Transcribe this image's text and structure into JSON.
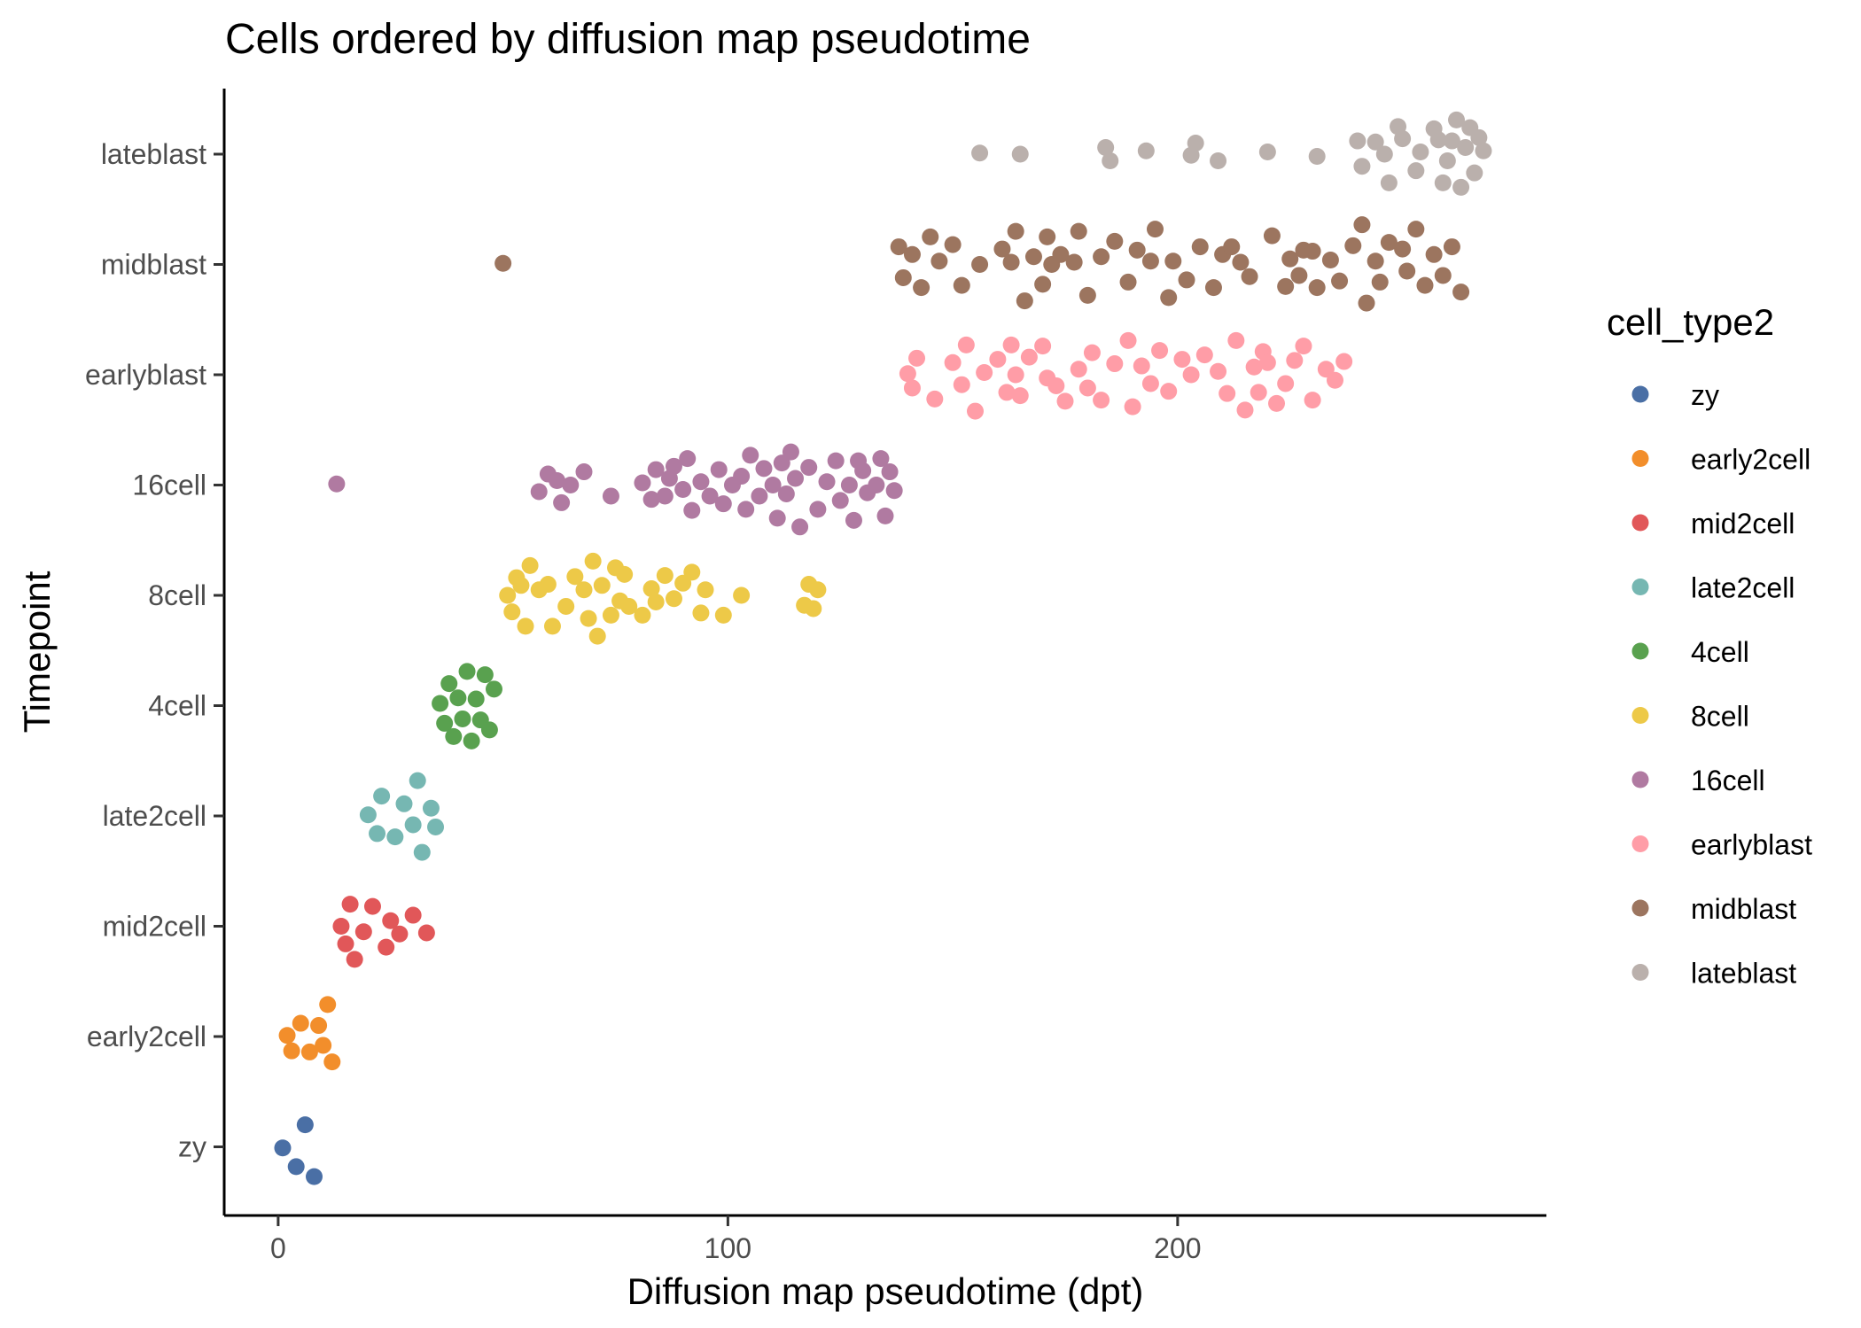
{
  "chart_data": {
    "type": "scatter",
    "title": "Cells ordered by diffusion map pseudotime",
    "xlabel": "Diffusion map pseudotime (dpt)",
    "ylabel": "Timepoint",
    "xlim": [
      -12,
      282
    ],
    "x_ticks": [
      0,
      100,
      200
    ],
    "categories": [
      "zy",
      "early2cell",
      "mid2cell",
      "late2cell",
      "4cell",
      "8cell",
      "16cell",
      "earlyblast",
      "midblast",
      "lateblast"
    ],
    "grid": false,
    "legend": {
      "title": "cell_type2",
      "position": "right"
    },
    "series": [
      {
        "name": "zy",
        "color": "#4a6fa5",
        "points": [
          [
            1,
            -0.01
          ],
          [
            4,
            -0.18
          ],
          [
            6,
            0.2
          ],
          [
            8,
            -0.27
          ]
        ]
      },
      {
        "name": "early2cell",
        "color": "#f28e2b",
        "points": [
          [
            2,
            0.01
          ],
          [
            3,
            -0.13
          ],
          [
            5,
            0.12
          ],
          [
            7,
            -0.14
          ],
          [
            9,
            0.1
          ],
          [
            10,
            -0.08
          ],
          [
            11,
            0.29
          ],
          [
            12,
            -0.23
          ]
        ]
      },
      {
        "name": "mid2cell",
        "color": "#e15759",
        "points": [
          [
            14,
            0.0
          ],
          [
            15,
            -0.16
          ],
          [
            16,
            0.2
          ],
          [
            17,
            -0.3
          ],
          [
            19,
            -0.05
          ],
          [
            21,
            0.18
          ],
          [
            25,
            0.05
          ],
          [
            24,
            -0.19
          ],
          [
            27,
            -0.07
          ],
          [
            30,
            0.1
          ],
          [
            33,
            -0.06
          ]
        ]
      },
      {
        "name": "late2cell",
        "color": "#76b7b2",
        "points": [
          [
            20,
            0.01
          ],
          [
            22,
            -0.16
          ],
          [
            23,
            0.18
          ],
          [
            26,
            -0.19
          ],
          [
            28,
            0.11
          ],
          [
            30,
            -0.08
          ],
          [
            31,
            0.32
          ],
          [
            32,
            -0.33
          ],
          [
            34,
            0.07
          ],
          [
            35,
            -0.1
          ]
        ]
      },
      {
        "name": "4cell",
        "color": "#59a14f",
        "points": [
          [
            36,
            0.02
          ],
          [
            37,
            -0.16
          ],
          [
            38,
            0.2
          ],
          [
            39,
            -0.28
          ],
          [
            40,
            0.07
          ],
          [
            41,
            -0.12
          ],
          [
            42,
            0.31
          ],
          [
            43,
            -0.32
          ],
          [
            44,
            0.06
          ],
          [
            45,
            -0.13
          ],
          [
            46,
            0.28
          ],
          [
            47,
            -0.22
          ],
          [
            48,
            0.15
          ]
        ]
      },
      {
        "name": "8cell",
        "color": "#edc948",
        "points": [
          [
            51,
            0.0
          ],
          [
            52,
            -0.15
          ],
          [
            53,
            0.16
          ],
          [
            54,
            0.09
          ],
          [
            55,
            -0.28
          ],
          [
            56,
            0.27
          ],
          [
            58,
            0.05
          ],
          [
            60,
            0.1
          ],
          [
            61,
            -0.28
          ],
          [
            64,
            -0.1
          ],
          [
            66,
            0.17
          ],
          [
            68,
            0.05
          ],
          [
            69,
            -0.21
          ],
          [
            70,
            0.31
          ],
          [
            71,
            -0.37
          ],
          [
            72,
            0.09
          ],
          [
            74,
            -0.18
          ],
          [
            75,
            0.25
          ],
          [
            76,
            -0.05
          ],
          [
            77,
            0.19
          ],
          [
            78,
            -0.1
          ],
          [
            81,
            -0.18
          ],
          [
            83,
            0.06
          ],
          [
            84,
            -0.06
          ],
          [
            86,
            0.18
          ],
          [
            88,
            -0.03
          ],
          [
            90,
            0.11
          ],
          [
            92,
            0.21
          ],
          [
            94,
            -0.16
          ],
          [
            95,
            0.05
          ],
          [
            99,
            -0.18
          ],
          [
            103,
            0.0
          ],
          [
            117,
            -0.09
          ],
          [
            118,
            0.1
          ],
          [
            119,
            -0.12
          ],
          [
            120,
            0.05
          ]
        ]
      },
      {
        "name": "16cell",
        "color": "#b07aa1",
        "points": [
          [
            13,
            0.01
          ],
          [
            58,
            -0.06
          ],
          [
            60,
            0.1
          ],
          [
            62,
            0.04
          ],
          [
            63,
            -0.16
          ],
          [
            65,
            0.0
          ],
          [
            68,
            0.12
          ],
          [
            74,
            -0.1
          ],
          [
            81,
            0.02
          ],
          [
            83,
            -0.13
          ],
          [
            84,
            0.14
          ],
          [
            86,
            -0.1
          ],
          [
            87,
            0.06
          ],
          [
            88,
            0.17
          ],
          [
            90,
            -0.04
          ],
          [
            91,
            0.24
          ],
          [
            92,
            -0.23
          ],
          [
            94,
            0.03
          ],
          [
            96,
            -0.1
          ],
          [
            98,
            0.14
          ],
          [
            99,
            -0.17
          ],
          [
            101,
            0.0
          ],
          [
            103,
            0.08
          ],
          [
            104,
            -0.22
          ],
          [
            105,
            0.27
          ],
          [
            107,
            -0.1
          ],
          [
            108,
            0.15
          ],
          [
            110,
            0.0
          ],
          [
            111,
            -0.3
          ],
          [
            112,
            0.2
          ],
          [
            113,
            -0.08
          ],
          [
            114,
            0.3
          ],
          [
            115,
            0.06
          ],
          [
            116,
            -0.38
          ],
          [
            118,
            0.16
          ],
          [
            120,
            -0.22
          ],
          [
            122,
            0.03
          ],
          [
            124,
            0.22
          ],
          [
            125,
            -0.14
          ],
          [
            127,
            0.0
          ],
          [
            128,
            -0.32
          ],
          [
            129,
            0.22
          ],
          [
            130,
            0.13
          ],
          [
            131,
            -0.07
          ],
          [
            133,
            0.0
          ],
          [
            134,
            0.24
          ],
          [
            135,
            -0.28
          ],
          [
            136,
            0.12
          ],
          [
            137,
            -0.05
          ]
        ]
      },
      {
        "name": "earlyblast",
        "color": "#ff9da7",
        "points": [
          [
            140,
            0.01
          ],
          [
            141,
            -0.12
          ],
          [
            142,
            0.15
          ],
          [
            146,
            -0.22
          ],
          [
            150,
            0.11
          ],
          [
            152,
            -0.09
          ],
          [
            153,
            0.27
          ],
          [
            155,
            -0.33
          ],
          [
            157,
            0.02
          ],
          [
            160,
            0.14
          ],
          [
            162,
            -0.16
          ],
          [
            163,
            0.27
          ],
          [
            164,
            0.0
          ],
          [
            165,
            -0.19
          ],
          [
            167,
            0.16
          ],
          [
            170,
            0.26
          ],
          [
            171,
            -0.03
          ],
          [
            173,
            -0.1
          ],
          [
            175,
            -0.24
          ],
          [
            178,
            0.05
          ],
          [
            180,
            -0.12
          ],
          [
            181,
            0.2
          ],
          [
            183,
            -0.23
          ],
          [
            186,
            0.1
          ],
          [
            189,
            0.31
          ],
          [
            190,
            -0.29
          ],
          [
            192,
            0.08
          ],
          [
            194,
            -0.08
          ],
          [
            196,
            0.22
          ],
          [
            198,
            -0.15
          ],
          [
            201,
            0.14
          ],
          [
            203,
            0.0
          ],
          [
            206,
            0.18
          ],
          [
            209,
            0.03
          ],
          [
            211,
            -0.17
          ],
          [
            213,
            0.31
          ],
          [
            215,
            -0.32
          ],
          [
            217,
            0.07
          ],
          [
            218,
            -0.16
          ],
          [
            219,
            0.21
          ],
          [
            220,
            0.11
          ],
          [
            222,
            -0.26
          ],
          [
            224,
            -0.08
          ],
          [
            226,
            0.13
          ],
          [
            228,
            0.26
          ],
          [
            230,
            -0.23
          ],
          [
            233,
            0.05
          ],
          [
            235,
            -0.05
          ],
          [
            237,
            0.12
          ]
        ]
      },
      {
        "name": "midblast",
        "color": "#9c755f",
        "points": [
          [
            50,
            0.01
          ],
          [
            138,
            0.16
          ],
          [
            139,
            -0.12
          ],
          [
            141,
            0.09
          ],
          [
            143,
            -0.21
          ],
          [
            145,
            0.25
          ],
          [
            147,
            0.03
          ],
          [
            150,
            0.18
          ],
          [
            152,
            -0.19
          ],
          [
            156,
            0.0
          ],
          [
            161,
            0.14
          ],
          [
            163,
            0.02
          ],
          [
            164,
            0.3
          ],
          [
            166,
            -0.33
          ],
          [
            168,
            0.07
          ],
          [
            170,
            -0.18
          ],
          [
            171,
            0.25
          ],
          [
            172,
            0.0
          ],
          [
            174,
            0.09
          ],
          [
            177,
            0.02
          ],
          [
            178,
            0.3
          ],
          [
            180,
            -0.28
          ],
          [
            183,
            0.07
          ],
          [
            186,
            0.21
          ],
          [
            189,
            -0.16
          ],
          [
            191,
            0.13
          ],
          [
            194,
            0.03
          ],
          [
            195,
            0.32
          ],
          [
            198,
            -0.3
          ],
          [
            199,
            0.03
          ],
          [
            202,
            -0.14
          ],
          [
            205,
            0.16
          ],
          [
            208,
            -0.21
          ],
          [
            210,
            0.09
          ],
          [
            212,
            0.16
          ],
          [
            214,
            0.02
          ],
          [
            216,
            -0.11
          ],
          [
            221,
            0.26
          ],
          [
            224,
            -0.2
          ],
          [
            225,
            0.05
          ],
          [
            227,
            -0.1
          ],
          [
            228,
            0.13
          ],
          [
            230,
            0.12
          ],
          [
            231,
            -0.21
          ],
          [
            234,
            0.04
          ],
          [
            236,
            -0.15
          ],
          [
            239,
            0.17
          ],
          [
            241,
            0.36
          ],
          [
            242,
            -0.35
          ],
          [
            244,
            0.03
          ],
          [
            245,
            -0.16
          ],
          [
            247,
            0.2
          ],
          [
            250,
            0.14
          ],
          [
            251,
            -0.06
          ],
          [
            253,
            0.32
          ],
          [
            255,
            -0.19
          ],
          [
            257,
            0.09
          ],
          [
            259,
            -0.1
          ],
          [
            261,
            0.16
          ],
          [
            263,
            -0.25
          ]
        ]
      },
      {
        "name": "lateblast",
        "color": "#bab0ac",
        "points": [
          [
            156,
            0.01
          ],
          [
            165,
            0.0
          ],
          [
            184,
            0.06
          ],
          [
            185,
            -0.06
          ],
          [
            193,
            0.03
          ],
          [
            204,
            0.1
          ],
          [
            203,
            -0.01
          ],
          [
            209,
            -0.06
          ],
          [
            220,
            0.02
          ],
          [
            231,
            -0.02
          ],
          [
            240,
            0.12
          ],
          [
            241,
            -0.11
          ],
          [
            244,
            0.11
          ],
          [
            246,
            0.0
          ],
          [
            247,
            -0.26
          ],
          [
            249,
            0.25
          ],
          [
            250,
            0.14
          ],
          [
            253,
            -0.15
          ],
          [
            254,
            0.02
          ],
          [
            257,
            0.23
          ],
          [
            258,
            0.13
          ],
          [
            259,
            -0.26
          ],
          [
            260,
            -0.06
          ],
          [
            261,
            0.12
          ],
          [
            262,
            0.31
          ],
          [
            263,
            -0.3
          ],
          [
            264,
            0.06
          ],
          [
            265,
            0.24
          ],
          [
            266,
            -0.17
          ],
          [
            267,
            0.15
          ],
          [
            268,
            0.03
          ]
        ]
      }
    ]
  }
}
